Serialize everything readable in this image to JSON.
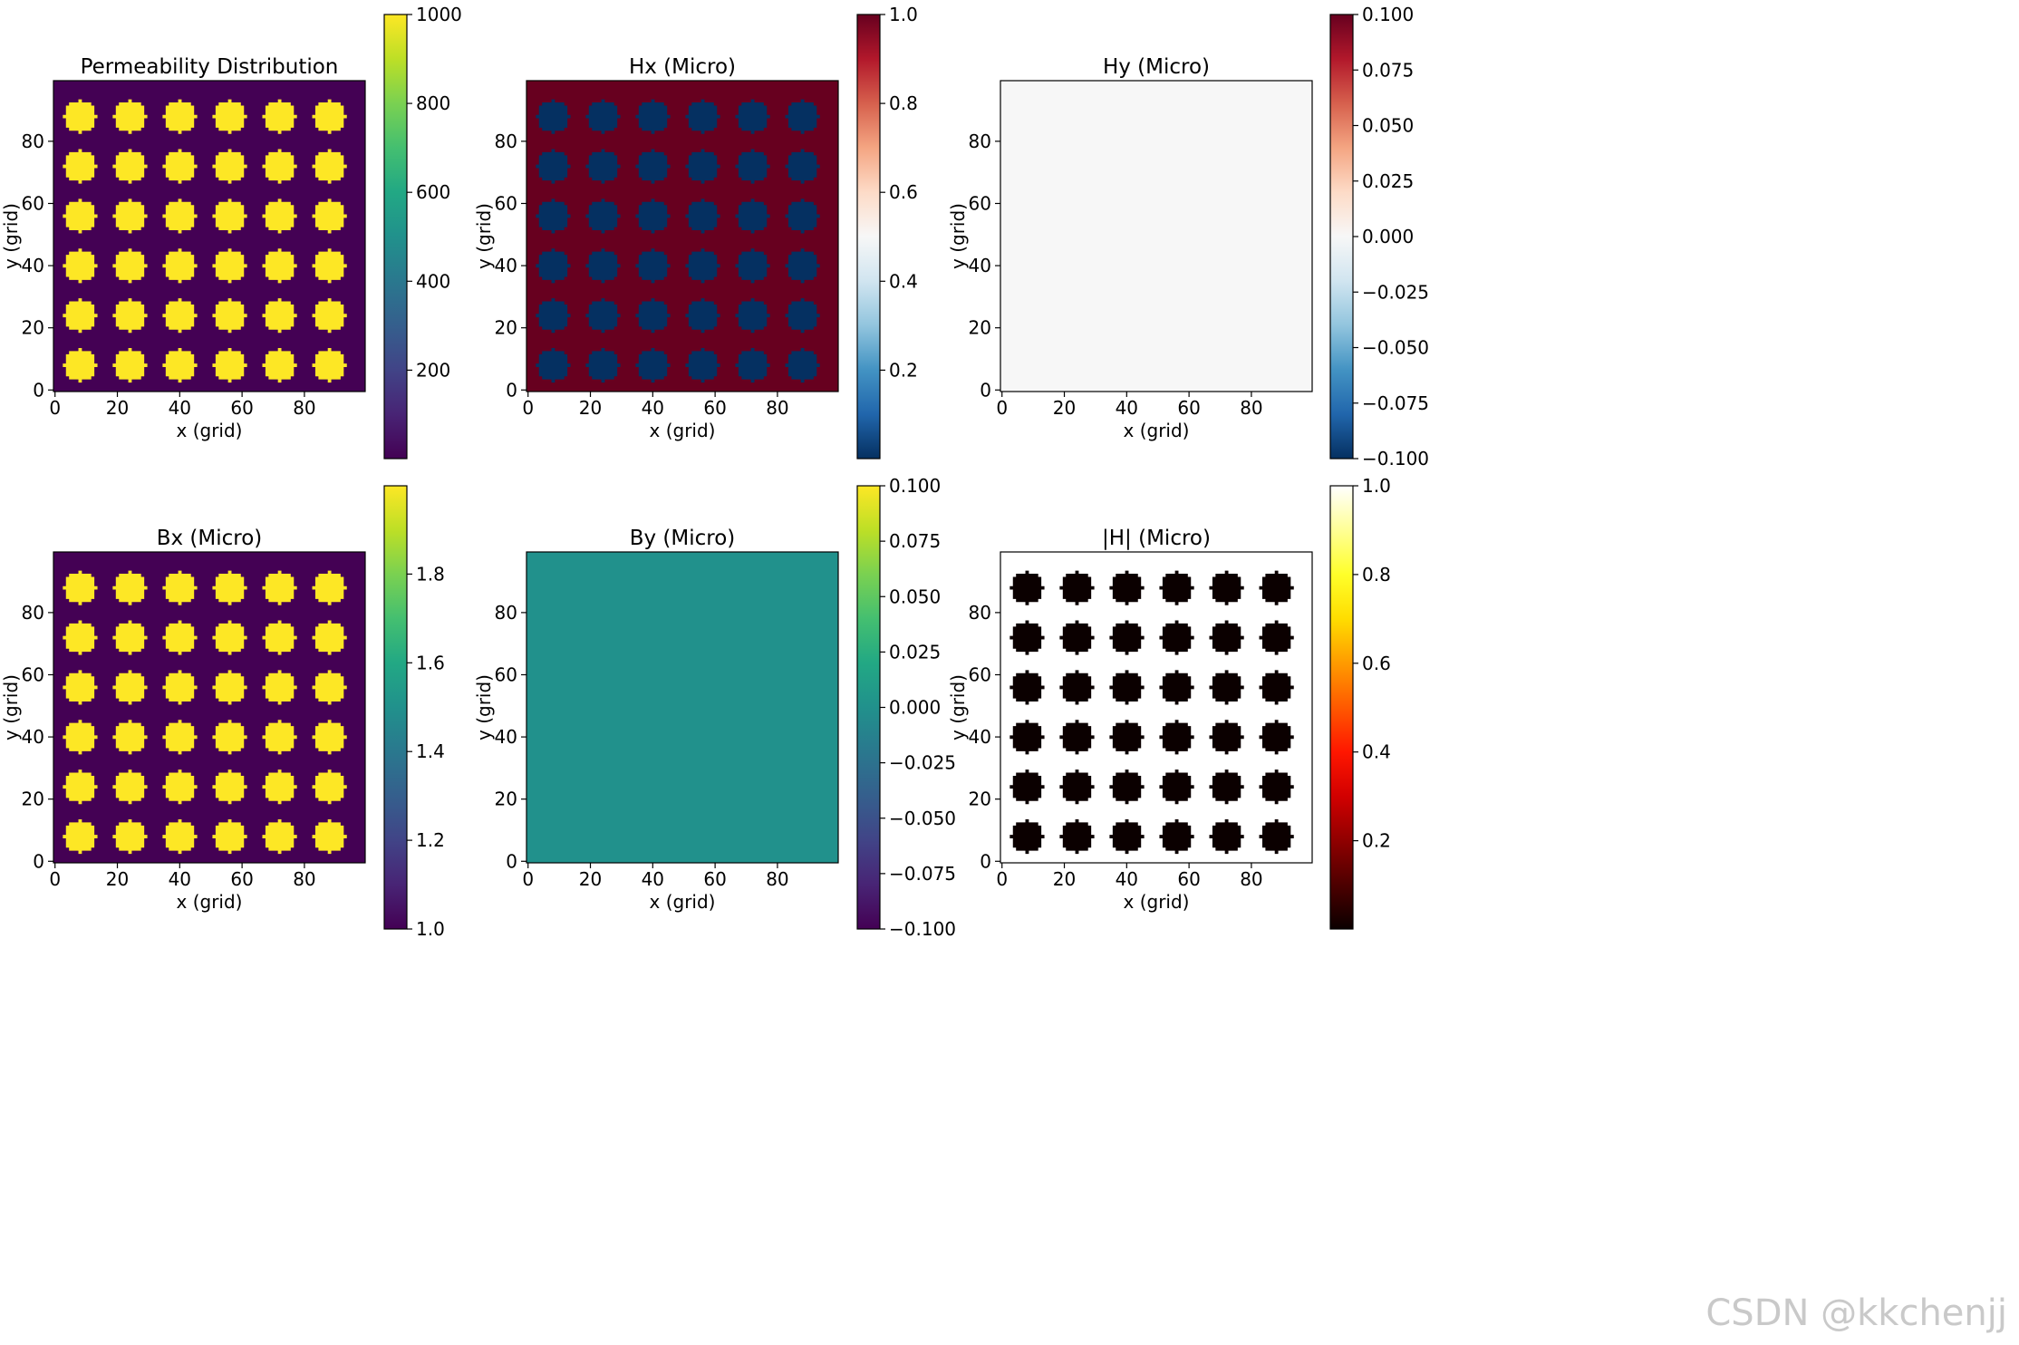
{
  "watermark": "CSDN @kkchenjj",
  "chart_data": [
    {
      "type": "heatmap",
      "title": "Permeability Distribution",
      "xlabel": "x (grid)",
      "ylabel": "y (grid)",
      "xlim": [
        0,
        99
      ],
      "ylim": [
        0,
        99
      ],
      "xticks": [
        "0",
        "20",
        "40",
        "60",
        "80"
      ],
      "yticks": [
        "0",
        "20",
        "40",
        "60",
        "80"
      ],
      "cells": {
        "centers": [
          8,
          24,
          40,
          56,
          72,
          88
        ],
        "inside_value": 1000,
        "outside_value": 1
      },
      "colormap": "viridis",
      "colorbar": {
        "range": [
          1,
          1000
        ],
        "ticks": [
          200,
          400,
          600,
          800,
          1000
        ],
        "labels": [
          "200",
          "400",
          "600",
          "800",
          "1000"
        ]
      }
    },
    {
      "type": "heatmap",
      "title": "Hx (Micro)",
      "xlabel": "x (grid)",
      "ylabel": "y (grid)",
      "xlim": [
        0,
        99
      ],
      "ylim": [
        0,
        99
      ],
      "xticks": [
        "0",
        "20",
        "40",
        "60",
        "80"
      ],
      "yticks": [
        "0",
        "20",
        "40",
        "60",
        "80"
      ],
      "cells": {
        "centers": [
          8,
          24,
          40,
          56,
          72,
          88
        ],
        "inside_value": 0.001,
        "outside_value": 1.0
      },
      "colormap": "RdBu_r",
      "colorbar": {
        "range": [
          0.001,
          1.0
        ],
        "ticks": [
          0.2,
          0.4,
          0.6,
          0.8,
          1.0
        ],
        "labels": [
          "0.2",
          "0.4",
          "0.6",
          "0.8",
          "1.0"
        ]
      }
    },
    {
      "type": "heatmap",
      "title": "Hy (Micro)",
      "xlabel": "x (grid)",
      "ylabel": "y (grid)",
      "xlim": [
        0,
        99
      ],
      "ylim": [
        0,
        99
      ],
      "xticks": [
        "0",
        "20",
        "40",
        "60",
        "80"
      ],
      "yticks": [
        "0",
        "20",
        "40",
        "60",
        "80"
      ],
      "uniform_value": 0.0,
      "colormap": "RdBu_r",
      "colorbar": {
        "range": [
          -0.1,
          0.1
        ],
        "ticks": [
          -0.1,
          -0.075,
          -0.05,
          -0.025,
          0.0,
          0.025,
          0.05,
          0.075,
          0.1
        ],
        "labels": [
          "−0.100",
          "−0.075",
          "−0.050",
          "−0.025",
          "0.000",
          "0.025",
          "0.050",
          "0.075",
          "0.100"
        ]
      }
    },
    {
      "type": "heatmap",
      "title": "Bx (Micro)",
      "xlabel": "x (grid)",
      "ylabel": "y (grid)",
      "xlim": [
        0,
        99
      ],
      "ylim": [
        0,
        99
      ],
      "xticks": [
        "0",
        "20",
        "40",
        "60",
        "80"
      ],
      "yticks": [
        "0",
        "20",
        "40",
        "60",
        "80"
      ],
      "cells": {
        "centers": [
          8,
          24,
          40,
          56,
          72,
          88
        ],
        "inside_value": 1.999,
        "outside_value": 1.0
      },
      "colormap": "viridis",
      "colorbar": {
        "range": [
          1.0,
          1.999
        ],
        "ticks": [
          1.0,
          1.2,
          1.4,
          1.6,
          1.8
        ],
        "labels": [
          "1.0",
          "1.2",
          "1.4",
          "1.6",
          "1.8"
        ]
      }
    },
    {
      "type": "heatmap",
      "title": "By (Micro)",
      "xlabel": "x (grid)",
      "ylabel": "y (grid)",
      "xlim": [
        0,
        99
      ],
      "ylim": [
        0,
        99
      ],
      "xticks": [
        "0",
        "20",
        "40",
        "60",
        "80"
      ],
      "yticks": [
        "0",
        "20",
        "40",
        "60",
        "80"
      ],
      "uniform_value": 0.0,
      "colormap": "viridis",
      "colorbar": {
        "range": [
          -0.1,
          0.1
        ],
        "ticks": [
          -0.1,
          -0.075,
          -0.05,
          -0.025,
          0.0,
          0.025,
          0.05,
          0.075,
          0.1
        ],
        "labels": [
          "−0.100",
          "−0.075",
          "−0.050",
          "−0.025",
          "0.000",
          "0.025",
          "0.050",
          "0.075",
          "0.100"
        ]
      }
    },
    {
      "type": "heatmap",
      "title": "|H| (Micro)",
      "xlabel": "x (grid)",
      "ylabel": "y (grid)",
      "xlim": [
        0,
        99
      ],
      "ylim": [
        0,
        99
      ],
      "xticks": [
        "0",
        "20",
        "40",
        "60",
        "80"
      ],
      "yticks": [
        "0",
        "20",
        "40",
        "60",
        "80"
      ],
      "cells": {
        "centers": [
          8,
          24,
          40,
          56,
          72,
          88
        ],
        "inside_value": 0.001,
        "outside_value": 1.0
      },
      "colormap": "hot",
      "colorbar": {
        "range": [
          0.001,
          1.0
        ],
        "ticks": [
          0.2,
          0.4,
          0.6,
          0.8,
          1.0
        ],
        "labels": [
          "0.2",
          "0.4",
          "0.6",
          "0.8",
          "1.0"
        ]
      }
    }
  ]
}
